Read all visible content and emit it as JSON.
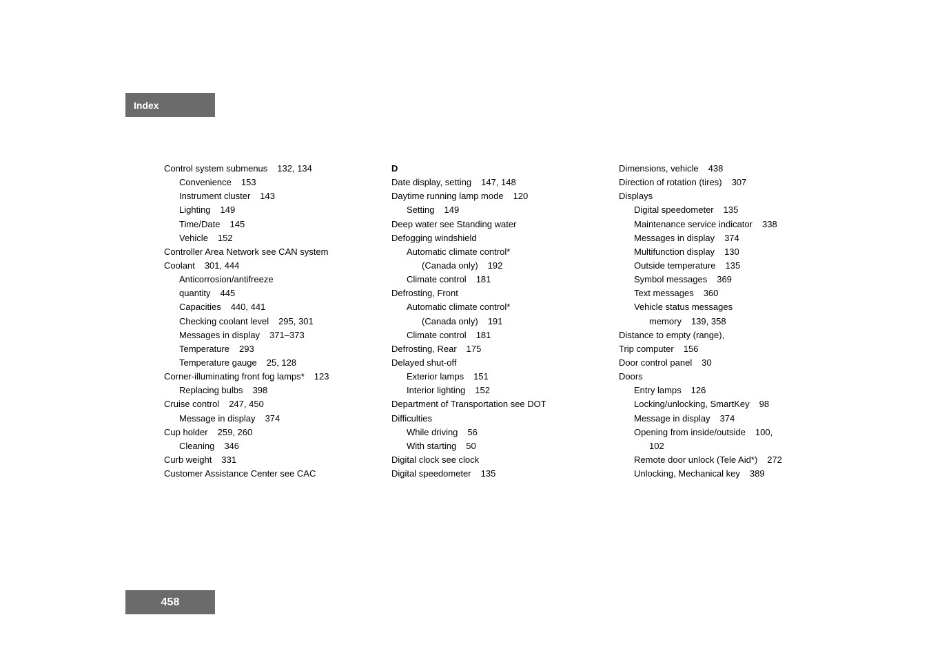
{
  "header": {
    "label": "Index"
  },
  "footer": {
    "page_number": "458"
  },
  "columns": [
    {
      "lines": [
        {
          "indent": 0,
          "text": "Control system submenus",
          "pages": "132, 134"
        },
        {
          "indent": 1,
          "text": "Convenience",
          "pages": "153"
        },
        {
          "indent": 1,
          "text": "Instrument cluster",
          "pages": "143"
        },
        {
          "indent": 1,
          "text": "Lighting",
          "pages": "149"
        },
        {
          "indent": 1,
          "text": "Time/Date",
          "pages": "145"
        },
        {
          "indent": 1,
          "text": "Vehicle",
          "pages": "152"
        },
        {
          "indent": 0,
          "text": "Controller Area Network see CAN system",
          "pages": ""
        },
        {
          "indent": 0,
          "text": "Coolant",
          "pages": "301, 444"
        },
        {
          "indent": 1,
          "text": "Anticorrosion/antifreeze",
          "pages": ""
        },
        {
          "indent": 1,
          "text": "  quantity",
          "pages": "445"
        },
        {
          "indent": 1,
          "text": "Capacities",
          "pages": "440, 441"
        },
        {
          "indent": 1,
          "text": "Checking coolant level",
          "pages": "295, 301"
        },
        {
          "indent": 1,
          "text": "Messages in display",
          "pages": "371–373"
        },
        {
          "indent": 1,
          "text": "Temperature",
          "pages": "293"
        },
        {
          "indent": 1,
          "text": "Temperature gauge",
          "pages": "25, 128"
        },
        {
          "indent": 0,
          "text": "Corner-illuminating front fog lamps*",
          "pages": "123"
        },
        {
          "indent": 1,
          "text": "Replacing bulbs",
          "pages": "398"
        },
        {
          "indent": 0,
          "text": "Cruise control",
          "pages": "247, 450"
        },
        {
          "indent": 1,
          "text": "Message in display",
          "pages": "374"
        },
        {
          "indent": 0,
          "text": "Cup holder",
          "pages": "259, 260"
        },
        {
          "indent": 1,
          "text": "Cleaning",
          "pages": "346"
        },
        {
          "indent": 0,
          "text": "Curb weight",
          "pages": "331"
        },
        {
          "indent": 0,
          "text": "Customer Assistance Center see CAC",
          "pages": ""
        }
      ]
    },
    {
      "lines": [
        {
          "indent": 0,
          "text": "D",
          "pages": "",
          "heading": true
        },
        {
          "indent": 0,
          "text": "Date display, setting",
          "pages": "147, 148"
        },
        {
          "indent": 0,
          "text": "Daytime running lamp mode",
          "pages": "120"
        },
        {
          "indent": 1,
          "text": "Setting",
          "pages": "149"
        },
        {
          "indent": 0,
          "text": "Deep water see Standing water",
          "pages": ""
        },
        {
          "indent": 0,
          "text": "Defogging windshield",
          "pages": ""
        },
        {
          "indent": 1,
          "text": "Automatic climate control*",
          "pages": ""
        },
        {
          "indent": 2,
          "text": "(Canada only)",
          "pages": "192"
        },
        {
          "indent": 1,
          "text": "Climate control",
          "pages": "181"
        },
        {
          "indent": 0,
          "text": "Defrosting, Front",
          "pages": ""
        },
        {
          "indent": 1,
          "text": "Automatic climate control*",
          "pages": ""
        },
        {
          "indent": 2,
          "text": "(Canada only)",
          "pages": "191"
        },
        {
          "indent": 1,
          "text": "Climate control",
          "pages": "181"
        },
        {
          "indent": 0,
          "text": "Defrosting, Rear",
          "pages": "175"
        },
        {
          "indent": 0,
          "text": "Delayed shut-off",
          "pages": ""
        },
        {
          "indent": 1,
          "text": "Exterior lamps",
          "pages": "151"
        },
        {
          "indent": 1,
          "text": "Interior lighting",
          "pages": "152"
        },
        {
          "indent": 0,
          "text": "Department of Transportation see DOT",
          "pages": ""
        },
        {
          "indent": 0,
          "text": "Difficulties",
          "pages": ""
        },
        {
          "indent": 1,
          "text": "While driving",
          "pages": "56"
        },
        {
          "indent": 1,
          "text": "With starting",
          "pages": "50"
        },
        {
          "indent": 0,
          "text": "Digital clock see clock",
          "pages": ""
        },
        {
          "indent": 0,
          "text": "Digital speedometer",
          "pages": "135"
        }
      ]
    },
    {
      "lines": [
        {
          "indent": 0,
          "text": "Dimensions, vehicle",
          "pages": "438"
        },
        {
          "indent": 0,
          "text": "Direction of rotation (tires)",
          "pages": "307"
        },
        {
          "indent": 0,
          "text": "Displays",
          "pages": ""
        },
        {
          "indent": 1,
          "text": "Digital speedometer",
          "pages": "135"
        },
        {
          "indent": 1,
          "text": "Maintenance service indicator",
          "pages": "338"
        },
        {
          "indent": 1,
          "text": "Messages in display",
          "pages": "374"
        },
        {
          "indent": 1,
          "text": "Multifunction display",
          "pages": "130"
        },
        {
          "indent": 1,
          "text": "Outside temperature",
          "pages": "135"
        },
        {
          "indent": 1,
          "text": "Symbol messages",
          "pages": "369"
        },
        {
          "indent": 1,
          "text": "Text messages",
          "pages": "360"
        },
        {
          "indent": 1,
          "text": "Vehicle status messages",
          "pages": ""
        },
        {
          "indent": 2,
          "text": "memory",
          "pages": "139, 358"
        },
        {
          "indent": 0,
          "text": "Distance to empty (range),",
          "pages": ""
        },
        {
          "indent": 0,
          "text": "  Trip computer",
          "pages": "156"
        },
        {
          "indent": 0,
          "text": "Door control panel",
          "pages": "30"
        },
        {
          "indent": 0,
          "text": "Doors",
          "pages": ""
        },
        {
          "indent": 1,
          "text": "Entry lamps",
          "pages": "126"
        },
        {
          "indent": 1,
          "text": "Locking/unlocking, SmartKey",
          "pages": "98"
        },
        {
          "indent": 1,
          "text": "Message in display",
          "pages": "374"
        },
        {
          "indent": 1,
          "text": "Opening from inside/outside",
          "pages": "100,"
        },
        {
          "indent": 2,
          "text": "102",
          "pages": ""
        },
        {
          "indent": 1,
          "text": "Remote door unlock (Tele Aid*)",
          "pages": "272"
        },
        {
          "indent": 1,
          "text": "Unlocking, Mechanical key",
          "pages": "389"
        }
      ]
    }
  ]
}
